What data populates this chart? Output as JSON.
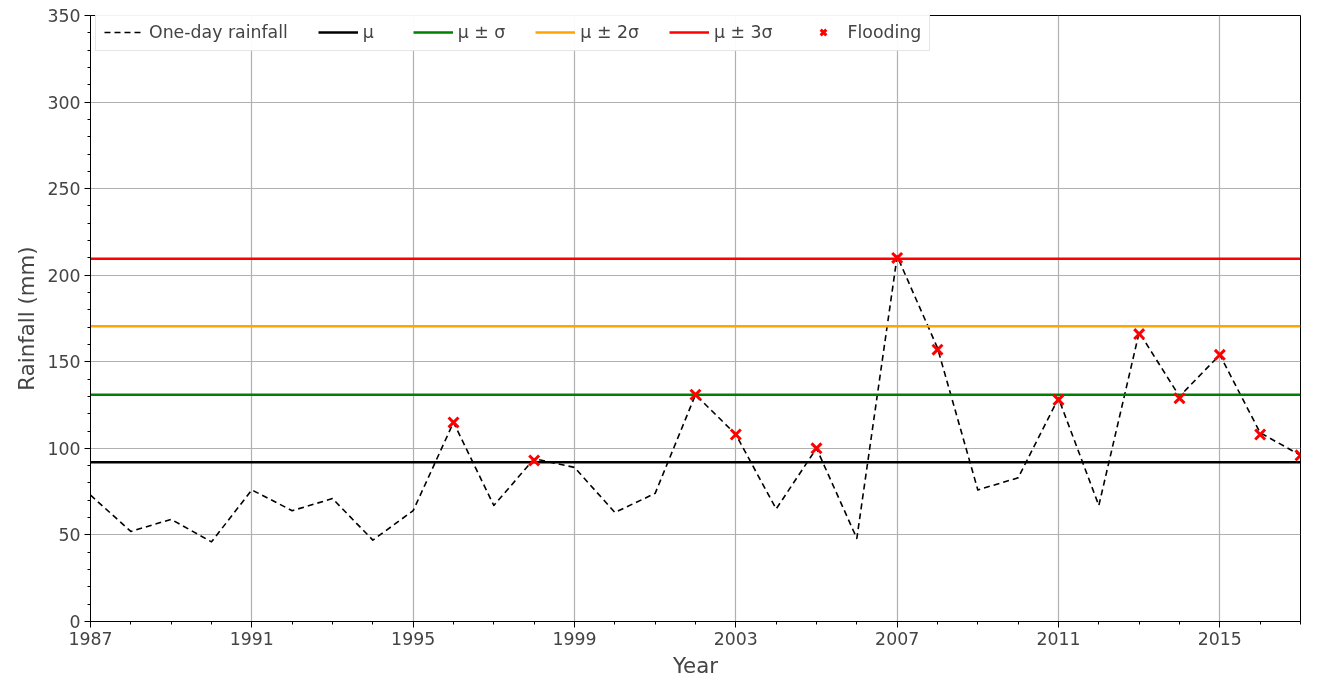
{
  "chart_data": {
    "type": "line",
    "xlabel": "Year",
    "ylabel": "Rainfall (mm)",
    "xlim": [
      1987,
      2017
    ],
    "xticks": [
      1987,
      1991,
      1995,
      1999,
      2003,
      2007,
      2011,
      2015
    ],
    "ylim": [
      0,
      350
    ],
    "yticks": [
      0,
      50,
      100,
      150,
      200,
      250,
      300,
      350
    ],
    "grid": true,
    "legend": "top",
    "series": [
      {
        "name": "One-day rainfall",
        "type": "line",
        "color": "#000000",
        "line_style": "dashed",
        "marker": "none",
        "x": [
          1987,
          1988,
          1989,
          1990,
          1991,
          1992,
          1993,
          1994,
          1995,
          1996,
          1997,
          1998,
          1999,
          2000,
          2001,
          2002,
          2003,
          2004,
          2005,
          2006,
          2007,
          2008,
          2009,
          2010,
          2011,
          2012,
          2013,
          2014,
          2015,
          2016,
          2017
        ],
        "values": [
          73,
          52,
          59,
          46,
          76,
          64,
          71,
          47,
          64,
          115,
          67,
          94,
          89,
          63,
          74,
          131,
          108,
          65,
          100,
          48,
          211,
          158,
          76,
          83,
          129,
          67,
          167,
          130,
          154,
          109,
          96
        ]
      },
      {
        "name": "Flooding",
        "type": "scatter",
        "color": "#ff0000",
        "marker": "cross",
        "x": [
          1996,
          1998,
          2002,
          2003,
          2005,
          2007,
          2008,
          2011,
          2013,
          2014,
          2015,
          2016,
          2017
        ],
        "values": [
          115,
          93,
          131,
          108,
          100,
          210,
          157,
          128,
          166,
          129,
          154,
          108,
          96
        ]
      }
    ],
    "ref_lines": [
      {
        "axis": "y",
        "value": 92,
        "label": "μ",
        "color": "#000000"
      },
      {
        "axis": "y",
        "value": 131,
        "label": "μ ± σ",
        "color": "#008000"
      },
      {
        "axis": "y",
        "value": 170.5,
        "label": "μ ± 2σ",
        "color": "#ffa500"
      },
      {
        "axis": "y",
        "value": 209.5,
        "label": "μ ± 3σ",
        "color": "#ff0000"
      }
    ]
  }
}
